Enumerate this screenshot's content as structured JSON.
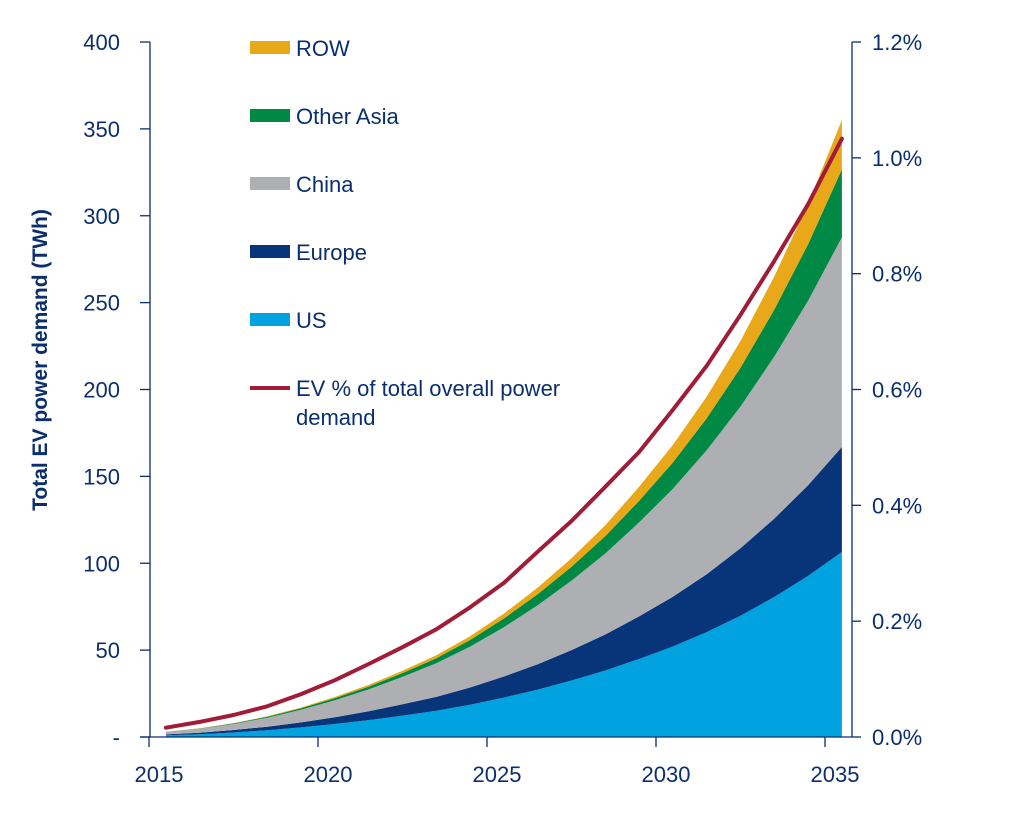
{
  "chart_data": {
    "type": "area",
    "title": "",
    "xlabel": "",
    "ylabel": "Total EV power demand (TWh)",
    "y2label": "",
    "x": [
      2015,
      2016,
      2017,
      2018,
      2019,
      2020,
      2021,
      2022,
      2023,
      2024,
      2025,
      2026,
      2027,
      2028,
      2029,
      2030,
      2031,
      2032,
      2033,
      2034,
      2035
    ],
    "xlim": [
      2015,
      2035
    ],
    "xticks": [
      "2015",
      "2020",
      "2025",
      "2030",
      "2035"
    ],
    "ylim": [
      0,
      400
    ],
    "yticks": [
      "-",
      "50",
      "100",
      "150",
      "200",
      "250",
      "300",
      "350",
      "400"
    ],
    "y2lim": [
      0,
      1.2
    ],
    "y2ticks": [
      "0.0%",
      "0.2%",
      "0.4%",
      "0.6%",
      "0.8%",
      "1.0%",
      "1.2%"
    ],
    "stacked": true,
    "grid": false,
    "legend_position": "top-left",
    "series": [
      {
        "name": "US",
        "color": "#00A3E0",
        "values": [
          1.0,
          1.6,
          2.6,
          3.9,
          5.5,
          7.5,
          9.7,
          12.3,
          15.1,
          18.6,
          22.7,
          27.3,
          32.5,
          38.3,
          44.9,
          52.1,
          60.4,
          69.8,
          80.6,
          92.7,
          106.5
        ]
      },
      {
        "name": "Europe",
        "color": "#08357A",
        "values": [
          0.5,
          0.9,
          1.4,
          2.0,
          2.9,
          3.9,
          5.1,
          6.5,
          8.0,
          9.9,
          12.1,
          14.6,
          17.5,
          20.7,
          24.5,
          28.6,
          33.3,
          38.8,
          45.1,
          52.2,
          60.4
        ]
      },
      {
        "name": "China",
        "color": "#AEAFB2",
        "values": [
          1.35,
          2.2,
          3.5,
          5.2,
          7.3,
          9.8,
          12.6,
          15.8,
          19.3,
          23.5,
          28.4,
          33.9,
          40.0,
          46.6,
          54.1,
          62.2,
          71.3,
          81.6,
          93.3,
          106.2,
          120.7
        ]
      },
      {
        "name": "Other Asia",
        "color": "#008845",
        "values": [
          0.09,
          0.2,
          0.3,
          0.5,
          0.8,
          1.2,
          1.6,
          2.2,
          2.9,
          3.8,
          5.0,
          6.4,
          8.0,
          10.0,
          12.4,
          15.1,
          18.4,
          22.3,
          27.0,
          32.5,
          39.1
        ]
      },
      {
        "name": "ROW",
        "color": "#E9A81A",
        "values": [
          0.06,
          0.1,
          0.2,
          0.3,
          0.5,
          0.7,
          1.0,
          1.3,
          1.7,
          2.2,
          2.8,
          3.8,
          4.9,
          6.3,
          8.1,
          10.1,
          12.5,
          15.5,
          19.1,
          23.3,
          28.4
        ]
      }
    ],
    "line_series": {
      "name": "EV % of total overall power demand",
      "axis": "right",
      "color": "#A01C37",
      "values": [
        0.016,
        0.026,
        0.038,
        0.053,
        0.074,
        0.098,
        0.126,
        0.155,
        0.186,
        0.224,
        0.266,
        0.32,
        0.373,
        0.432,
        0.492,
        0.565,
        0.641,
        0.729,
        0.822,
        0.92,
        1.033
      ]
    },
    "legend": [
      {
        "label": "ROW",
        "color": "#E9A81A",
        "kind": "area"
      },
      {
        "label": "Other Asia",
        "color": "#008845",
        "kind": "area"
      },
      {
        "label": "China",
        "color": "#AEAFB2",
        "kind": "area"
      },
      {
        "label": "Europe",
        "color": "#08357A",
        "kind": "area"
      },
      {
        "label": "US",
        "color": "#00A3E0",
        "kind": "area"
      },
      {
        "label": "EV % of total overall power demand",
        "color": "#A01C37",
        "kind": "line"
      }
    ],
    "axis_color": "#0B2F6E"
  }
}
